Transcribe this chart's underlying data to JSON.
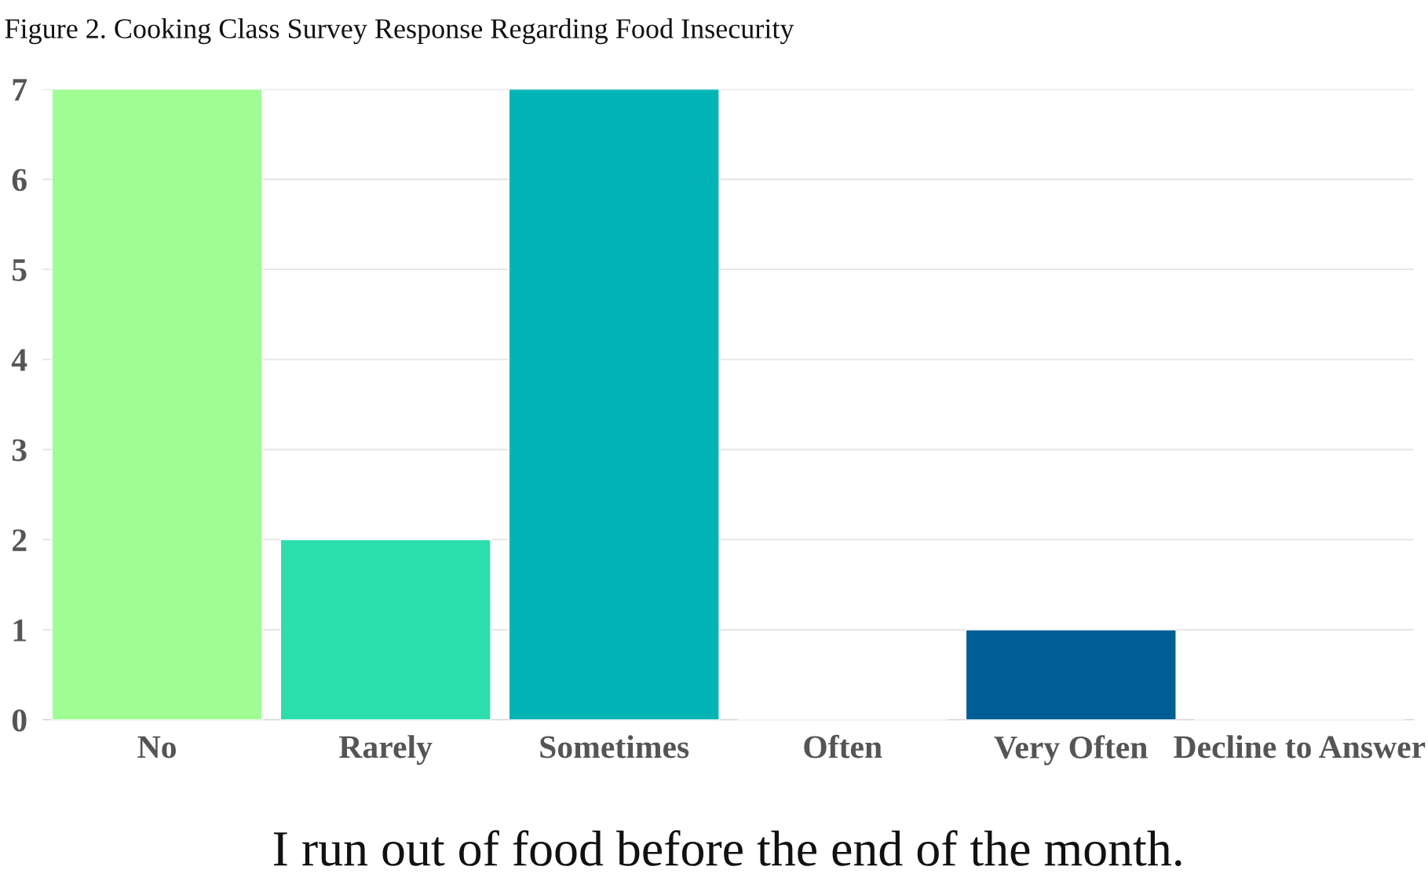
{
  "chart_data": {
    "type": "bar",
    "title": "Figure 2. Cooking Class Survey Response Regarding Food Insecurity",
    "xlabel": "I run out of food before the end of the month.",
    "categories": [
      "No",
      "Rarely",
      "Sometimes",
      "Often",
      "Very Often",
      "Decline to Answer"
    ],
    "values": [
      7,
      2,
      7,
      0,
      1,
      0
    ],
    "colors": [
      "#a0fd94",
      "#2ddead",
      "#02b4b6",
      null,
      "#005e94",
      null
    ],
    "ylim": [
      0,
      7
    ],
    "yticks": [
      0,
      1,
      2,
      3,
      4,
      5,
      6,
      7
    ],
    "grid": "y"
  }
}
